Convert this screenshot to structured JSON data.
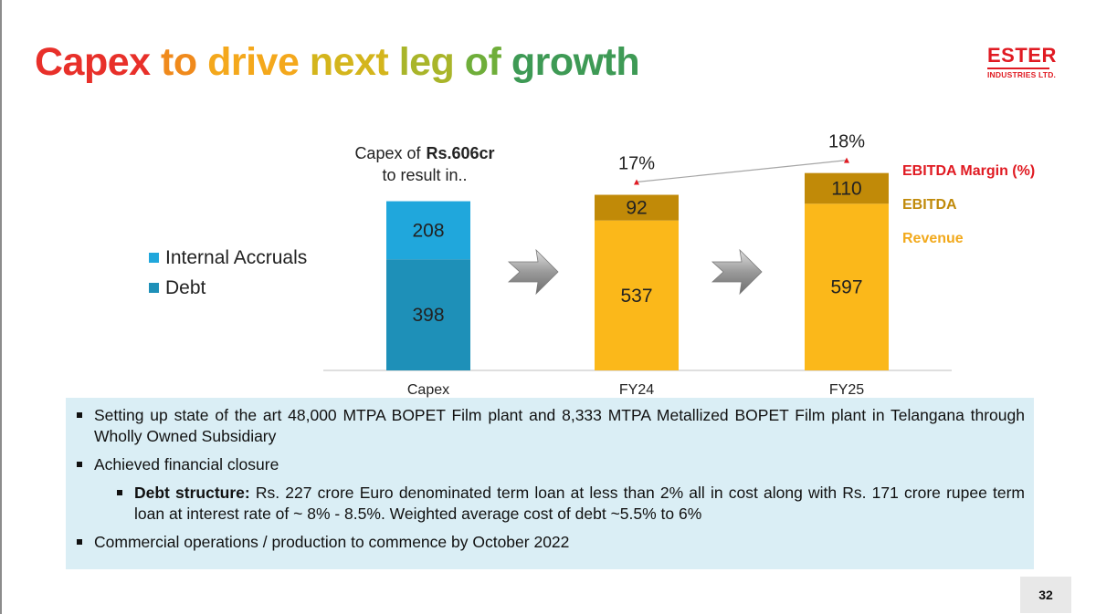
{
  "slide": {
    "title_words": [
      {
        "text": "Capex",
        "color": "#e8302a"
      },
      {
        "text": "to",
        "color": "#f08a1c"
      },
      {
        "text": "drive",
        "color": "#f4a81c"
      },
      {
        "text": "next",
        "color": "#d4b51c"
      },
      {
        "text": "leg",
        "color": "#a9b52a"
      },
      {
        "text": "of",
        "color": "#6fae3a"
      },
      {
        "text": "growth",
        "color": "#3e9a55"
      }
    ],
    "logo": {
      "name": "ESTER",
      "sub": "INDUSTRIES LTD."
    },
    "page_number": "32"
  },
  "capex_note": {
    "prefix": "Capex of",
    "amount": "Rs.606cr",
    "suffix": "to result in.."
  },
  "chart_data": {
    "type": "bar",
    "stacked": true,
    "categories": [
      "Capex",
      "FY24",
      "FY25"
    ],
    "capex": {
      "category": "Capex",
      "series": [
        {
          "name": "Debt",
          "value": 398,
          "color": "#1e90b8"
        },
        {
          "name": "Internal Accruals",
          "value": 208,
          "color": "#20a7dc"
        }
      ]
    },
    "projections": {
      "categories": [
        "FY24",
        "FY25"
      ],
      "series": [
        {
          "name": "Revenue",
          "values": [
            537,
            597
          ],
          "color": "#fbb81a"
        },
        {
          "name": "EBITDA",
          "values": [
            92,
            110
          ],
          "color": "#c18a08"
        }
      ],
      "margin_series": {
        "name": "EBITDA Margin (%)",
        "values": [
          17,
          18
        ],
        "labels": [
          "17%",
          "18%"
        ],
        "color": "#e01a22"
      }
    },
    "legend": [
      "Internal Accruals",
      "Debt"
    ],
    "right_labels": [
      {
        "text": "EBITDA Margin (%)",
        "color": "#e01a22"
      },
      {
        "text": "EBITDA",
        "color": "#c08a0a"
      },
      {
        "text": "Revenue",
        "color": "#f2a91c"
      }
    ],
    "ylim": [
      0,
      750
    ]
  },
  "bullets": [
    {
      "level": 1,
      "bold": "",
      "text": "Setting up state of the art 48,000 MTPA BOPET Film plant and 8,333 MTPA Metallized BOPET Film plant in Telangana through Wholly Owned Subsidiary"
    },
    {
      "level": 1,
      "bold": "",
      "text": "Achieved financial closure"
    },
    {
      "level": 2,
      "bold": "Debt structure:",
      "text": " Rs. 227 crore Euro denominated term loan at less than 2% all in cost along with Rs. 171 crore rupee term loan at interest rate of ~ 8% - 8.5%. Weighted average cost of debt  ~5.5% to 6%"
    },
    {
      "level": 1,
      "bold": "",
      "text": "Commercial operations / production to commence by October 2022"
    }
  ]
}
